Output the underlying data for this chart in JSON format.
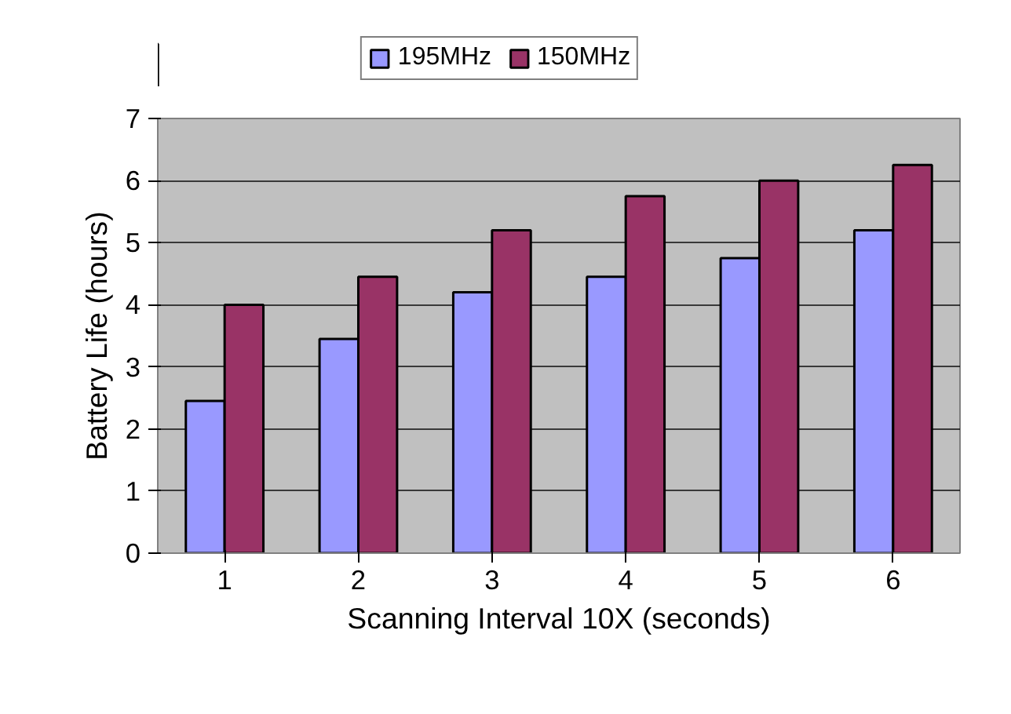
{
  "chart_data": {
    "type": "bar",
    "xlabel": "Scanning Interval 10X (seconds)",
    "ylabel": "Battery Life (hours)",
    "categories": [
      "1",
      "2",
      "3",
      "4",
      "5",
      "6"
    ],
    "series": [
      {
        "name": "195MHz",
        "color": "#9999ff",
        "values": [
          2.45,
          3.45,
          4.2,
          4.45,
          4.75,
          5.2
        ]
      },
      {
        "name": "150MHz",
        "color": "#993366",
        "values": [
          4.0,
          4.45,
          5.2,
          5.75,
          6.0,
          6.25
        ]
      }
    ],
    "ylim": [
      0,
      7
    ],
    "yticks": [
      0,
      1,
      2,
      3,
      4,
      5,
      6,
      7
    ],
    "grid": "y",
    "legend": "top"
  }
}
